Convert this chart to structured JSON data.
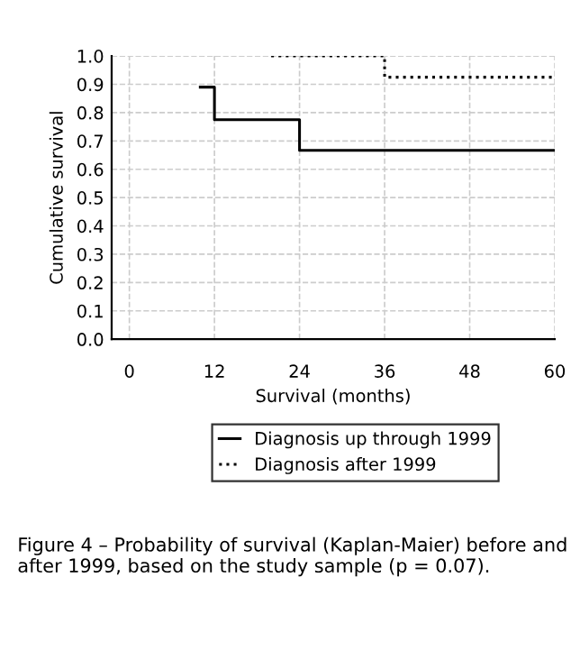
{
  "chart_data": {
    "type": "step",
    "xlabel": "Survival (months)",
    "ylabel": "Cumulative survival",
    "xlim": [
      -2.5,
      60
    ],
    "xticks": [
      0,
      12,
      24,
      36,
      48,
      60
    ],
    "ylim": [
      0,
      1.0
    ],
    "yticks": [
      {
        "value": 0,
        "label": "0.0"
      },
      0.1,
      0.2,
      0.3,
      0.4,
      0.5,
      0.6,
      0.7,
      0.8,
      0.9,
      {
        "value": 1,
        "label": "1.0"
      }
    ],
    "grid": true,
    "legend": "bottom",
    "series": [
      {
        "name": "Diagnosis up through 1999",
        "color": "#000000",
        "line_style": "solid",
        "x": [
          10,
          12,
          24,
          60
        ],
        "values": [
          0.89,
          0.775,
          0.667,
          0.667
        ]
      },
      {
        "name": "Diagnosis after 1999",
        "color": "#000000",
        "line_style": "dotted",
        "x": [
          20,
          36,
          60
        ],
        "values": [
          1.0,
          0.925,
          0.925
        ]
      }
    ],
    "annotations": [
      "Figure 4 – Probability of survival (Kaplan-Maier) before and after 1999, based on the study sample (p = 0.07)."
    ]
  }
}
